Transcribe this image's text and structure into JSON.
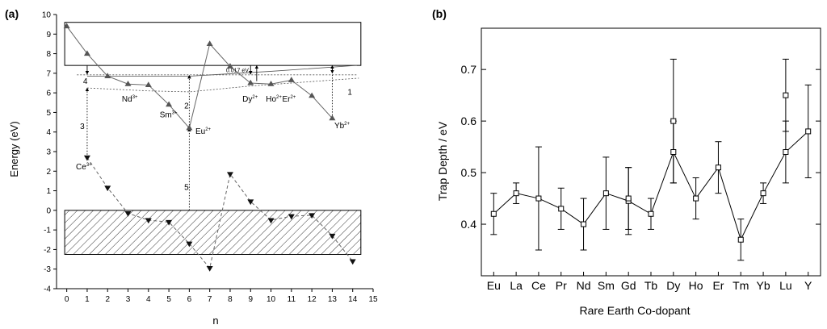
{
  "chart_data": [
    {
      "panel_label": "(a)",
      "type": "scatter",
      "xlabel": "n",
      "ylabel": "Energy (eV)",
      "xlim": [
        -0.5,
        15
      ],
      "ylim": [
        -4,
        10
      ],
      "xticks": [
        0,
        1,
        2,
        3,
        4,
        5,
        6,
        7,
        8,
        9,
        10,
        11,
        12,
        13,
        14,
        15
      ],
      "yticks": [
        -4,
        -3,
        -2,
        -1,
        0,
        1,
        2,
        3,
        4,
        5,
        6,
        7,
        8,
        9,
        10
      ],
      "conduction_band": {
        "y_from": 7.4,
        "y_to": 9.6,
        "x_from": -0.1,
        "x_to": 14.4
      },
      "valence_band": {
        "y_from": -2.25,
        "y_to": 0,
        "x_from": -0.1,
        "x_to": 14.4,
        "hatched": true
      },
      "series": [
        {
          "marker": "triangle-up",
          "line": "solid",
          "x": [
            0,
            1,
            2,
            3,
            4,
            5,
            6,
            7,
            8,
            9,
            10,
            11,
            12,
            13
          ],
          "y": [
            9.4,
            8.0,
            6.85,
            6.45,
            6.4,
            5.4,
            4.2,
            8.5,
            7.35,
            6.5,
            6.45,
            6.65,
            5.85,
            4.7
          ]
        },
        {
          "marker": "triangle-down",
          "line": "dashed",
          "x": [
            1,
            2,
            3,
            4,
            5,
            6,
            7,
            8,
            9,
            10,
            11,
            12,
            13,
            14
          ],
          "y": [
            2.7,
            1.15,
            -0.15,
            -0.5,
            -0.6,
            -1.7,
            -2.95,
            1.85,
            0.45,
            -0.5,
            -0.3,
            -0.25,
            -1.3,
            -2.6
          ]
        }
      ],
      "reference_curves": [
        {
          "style": "dotted",
          "x": [
            1,
            4,
            6,
            9,
            14.3
          ],
          "y": [
            6.25,
            6.1,
            6.05,
            6.35,
            6.75
          ]
        },
        {
          "style": "solid-thin",
          "x": [
            1,
            6,
            10,
            14.2
          ],
          "y": [
            6.85,
            6.85,
            7.1,
            7.4
          ]
        },
        {
          "style": "dotted",
          "x": [
            0.5,
            8,
            14.2
          ],
          "y": [
            6.92,
            6.92,
            6.92
          ]
        }
      ],
      "annotations": [
        {
          "text": "Ce",
          "sup": "3+",
          "x": 0.45,
          "y": 2.1
        },
        {
          "text": "Nd",
          "sup": "3+",
          "x": 2.7,
          "y": 5.55
        },
        {
          "text": "Sm",
          "sup": "3+",
          "x": 4.55,
          "y": 4.75
        },
        {
          "text": "Eu",
          "sup": "2+",
          "x": 6.3,
          "y": 3.9
        },
        {
          "text": "Dy",
          "sup": "2+",
          "x": 8.6,
          "y": 5.55
        },
        {
          "text": "Ho",
          "sup": "2+",
          "x": 9.75,
          "y": 5.55
        },
        {
          "text": "Er",
          "sup": "2+",
          "x": 10.55,
          "y": 5.55
        },
        {
          "text": "Yb",
          "sup": "2+",
          "x": 13.1,
          "y": 4.2
        },
        {
          "text": "0.017 eV",
          "sup": "",
          "x": 7.8,
          "y": 7.05,
          "small": true
        },
        {
          "text": "1",
          "sup": "",
          "x": 13.75,
          "y": 5.9
        },
        {
          "text": "2",
          "sup": "",
          "x": 5.75,
          "y": 5.2
        },
        {
          "text": "3",
          "sup": "",
          "x": 0.65,
          "y": 4.15
        },
        {
          "text": "4",
          "sup": "",
          "x": 0.8,
          "y": 6.45
        },
        {
          "text": "5",
          "sup": "",
          "x": 5.75,
          "y": 1.05
        }
      ],
      "transitions": [
        {
          "x": 13,
          "y_from": 4.85,
          "y_to": 7.4,
          "style": "dotted",
          "head": "up"
        },
        {
          "x": 6,
          "y_from": 4.2,
          "y_to": 6.9,
          "style": "dotted",
          "head": "up"
        },
        {
          "x": 1,
          "y_from": 2.7,
          "y_to": 6.25,
          "style": "dotted",
          "head": "up"
        },
        {
          "x": 6,
          "y_from": 0,
          "y_to": 4.2,
          "style": "dotted",
          "head": "up"
        },
        {
          "x": 1,
          "y_from": 7.4,
          "y_to": 6.95,
          "style": "solid",
          "head": "down"
        },
        {
          "x": 9,
          "y_from": 7.4,
          "y_to": 6.95,
          "style": "solid",
          "head": "down"
        },
        {
          "x": 9.3,
          "y_from": 6.6,
          "y_to": 7.4,
          "style": "solid",
          "head": "up"
        },
        {
          "x": 13,
          "y_from": 7.4,
          "y_to": 7.0,
          "style": "solid",
          "head": "down"
        }
      ]
    },
    {
      "panel_label": "(b)",
      "type": "line",
      "xlabel": "Rare Earth Co-dopant",
      "ylabel": "Trap Depth / eV",
      "ylim": [
        0.3,
        0.78
      ],
      "yticks": [
        0.4,
        0.5,
        0.6,
        0.7
      ],
      "categories": [
        "Eu",
        "La",
        "Ce",
        "Pr",
        "Nd",
        "Sm",
        "Gd",
        "Tb",
        "Dy",
        "Ho",
        "Er",
        "Tm",
        "Yb",
        "Lu",
        "Y"
      ],
      "values": [
        0.42,
        0.46,
        0.45,
        0.43,
        0.4,
        0.46,
        0.445,
        0.42,
        0.54,
        0.45,
        0.51,
        0.37,
        0.46,
        0.54,
        0.58
      ],
      "errors": [
        0.04,
        0.02,
        0.1,
        0.04,
        0.05,
        0.07,
        0.065,
        0.03,
        0.06,
        0.04,
        0.05,
        0.04,
        0.02,
        0.06,
        0.09
      ],
      "extra_points": [
        {
          "category": "Gd",
          "y": 0.45,
          "err": 0.06
        },
        {
          "category": "Dy",
          "y": 0.6,
          "err": 0.12
        },
        {
          "category": "Lu",
          "y": 0.65,
          "err": 0.07
        }
      ]
    }
  ]
}
